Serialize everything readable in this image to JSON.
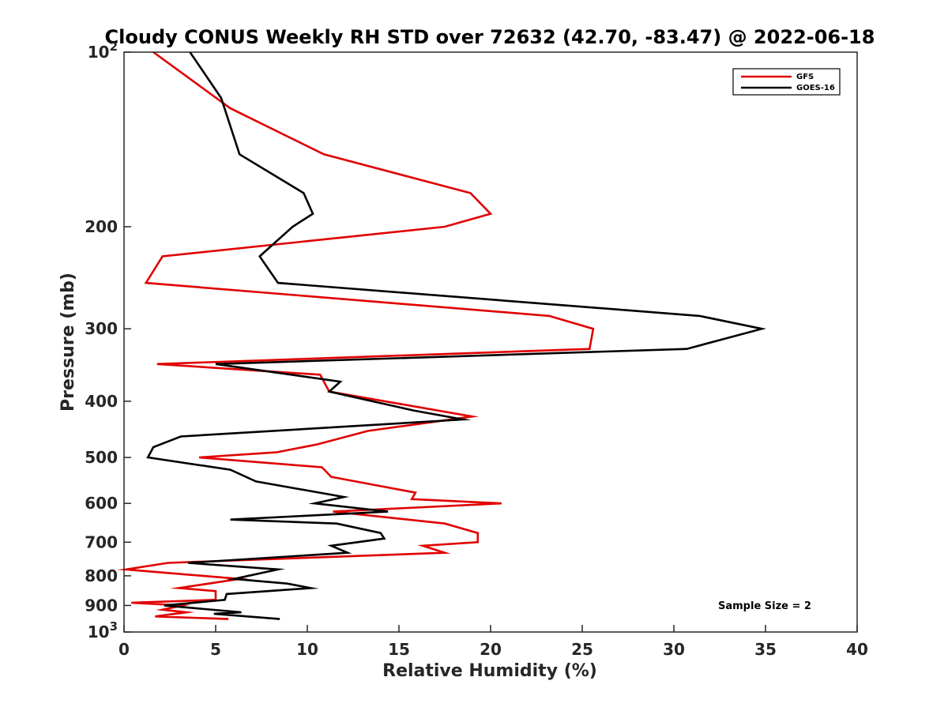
{
  "chart_data": {
    "type": "line",
    "title": "Cloudy CONUS Weekly RH STD over 72632 (42.70, -83.47) @ 2022-06-18",
    "xlabel": "Relative Humidity (%)",
    "ylabel": "Pressure (mb)",
    "xlim": [
      0,
      40
    ],
    "ylim": [
      100,
      1000
    ],
    "y_scale": "log",
    "y_reversed": true,
    "grid": false,
    "legend_position": "top-right",
    "x_ticks": [
      "0",
      "5",
      "10",
      "15",
      "20",
      "25",
      "30",
      "35",
      "40"
    ],
    "y_ticks": [
      {
        "value": 100,
        "base": "10",
        "exp": "2"
      },
      {
        "value": 200,
        "label": "200"
      },
      {
        "value": 300,
        "label": "300"
      },
      {
        "value": 400,
        "label": "400"
      },
      {
        "value": 500,
        "label": "500"
      },
      {
        "value": 600,
        "label": "600"
      },
      {
        "value": 700,
        "label": "700"
      },
      {
        "value": 800,
        "label": "800"
      },
      {
        "value": 900,
        "label": "900"
      },
      {
        "value": 1000,
        "base": "10",
        "exp": "3"
      }
    ],
    "annotation": "Sample Size = 2",
    "series": [
      {
        "name": "GFS",
        "color": "#e00000",
        "points": [
          [
            1.6,
            100
          ],
          [
            5.8,
            125
          ],
          [
            10.9,
            150
          ],
          [
            18.9,
            175
          ],
          [
            20.0,
            190
          ],
          [
            17.5,
            200
          ],
          [
            2.1,
            225
          ],
          [
            1.2,
            250
          ],
          [
            23.2,
            285
          ],
          [
            25.6,
            300
          ],
          [
            25.4,
            325
          ],
          [
            1.8,
            345
          ],
          [
            10.7,
            360
          ],
          [
            11.2,
            385
          ],
          [
            19.0,
            425
          ],
          [
            13.3,
            450
          ],
          [
            10.5,
            475
          ],
          [
            8.3,
            490
          ],
          [
            4.1,
            500
          ],
          [
            10.8,
            520
          ],
          [
            11.3,
            540
          ],
          [
            15.9,
            575
          ],
          [
            15.7,
            590
          ],
          [
            20.6,
            600
          ],
          [
            11.4,
            620
          ],
          [
            17.5,
            650
          ],
          [
            19.3,
            675
          ],
          [
            19.3,
            700
          ],
          [
            16.3,
            710
          ],
          [
            17.5,
            730
          ],
          [
            2.4,
            760
          ],
          [
            0.1,
            780
          ],
          [
            6.3,
            810
          ],
          [
            3.0,
            840
          ],
          [
            5.0,
            850
          ],
          [
            5.0,
            880
          ],
          [
            0.4,
            890
          ],
          [
            3.2,
            900
          ],
          [
            2.1,
            915
          ],
          [
            3.4,
            925
          ],
          [
            1.7,
            940
          ],
          [
            5.7,
            950
          ]
        ]
      },
      {
        "name": "GOES-16",
        "color": "#000000",
        "points": [
          [
            3.6,
            100
          ],
          [
            5.3,
            120
          ],
          [
            6.3,
            150
          ],
          [
            9.8,
            175
          ],
          [
            10.3,
            190
          ],
          [
            9.2,
            200
          ],
          [
            7.4,
            225
          ],
          [
            8.4,
            250
          ],
          [
            31.4,
            285
          ],
          [
            34.8,
            300
          ],
          [
            30.7,
            325
          ],
          [
            5.0,
            345
          ],
          [
            11.8,
            370
          ],
          [
            11.2,
            385
          ],
          [
            15.8,
            415
          ],
          [
            18.5,
            430
          ],
          [
            3.1,
            460
          ],
          [
            1.6,
            480
          ],
          [
            1.3,
            500
          ],
          [
            5.8,
            525
          ],
          [
            7.2,
            550
          ],
          [
            12.0,
            585
          ],
          [
            10.4,
            600
          ],
          [
            14.4,
            620
          ],
          [
            5.8,
            640
          ],
          [
            11.6,
            650
          ],
          [
            14.0,
            675
          ],
          [
            14.2,
            690
          ],
          [
            11.3,
            710
          ],
          [
            12.2,
            730
          ],
          [
            3.5,
            760
          ],
          [
            8.4,
            780
          ],
          [
            6.0,
            810
          ],
          [
            8.9,
            825
          ],
          [
            10.2,
            840
          ],
          [
            5.6,
            860
          ],
          [
            5.5,
            880
          ],
          [
            2.2,
            900
          ],
          [
            6.4,
            925
          ],
          [
            4.9,
            930
          ],
          [
            8.5,
            950
          ]
        ]
      }
    ]
  }
}
